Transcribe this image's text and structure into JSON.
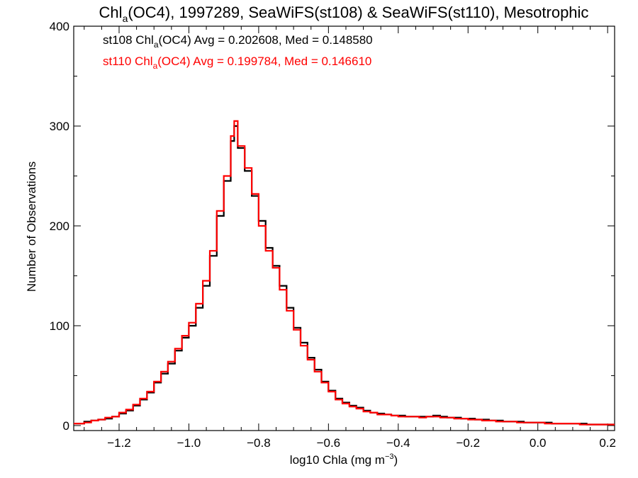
{
  "chart_data": {
    "type": "line",
    "title": {
      "prefix": "Chl",
      "sub": "a",
      "suffix": "(OC4), 1997289, SeaWiFS(st108) & SeaWiFS(st110), Mesotrophic"
    },
    "xlabel": {
      "prefix": "log10 Chla (mg m",
      "sup": "−3",
      "suffix": ")"
    },
    "ylabel": "Number of Observations",
    "xlim": [
      -1.33,
      0.22
    ],
    "ylim": [
      -5,
      400
    ],
    "x_ticks": [
      {
        "value": -1.2,
        "label": "−1.2"
      },
      {
        "value": -1.0,
        "label": "−1.0"
      },
      {
        "value": -0.8,
        "label": "−0.8"
      },
      {
        "value": -0.6,
        "label": "−0.6"
      },
      {
        "value": -0.4,
        "label": "−0.4"
      },
      {
        "value": -0.2,
        "label": "−0.2"
      },
      {
        "value": 0.0,
        "label": "0.0"
      },
      {
        "value": 0.2,
        "label": "0.2"
      }
    ],
    "y_ticks": [
      {
        "value": 0,
        "label": "0"
      },
      {
        "value": 100,
        "label": "100"
      },
      {
        "value": 200,
        "label": "200"
      },
      {
        "value": 300,
        "label": "300"
      },
      {
        "value": 400,
        "label": "400"
      }
    ],
    "legend": [
      {
        "series": "st108",
        "color": "#000000",
        "prefix": "st108 Chl",
        "sub": "a",
        "suffix": "(OC4) Avg = 0.202608, Med = 0.148580"
      },
      {
        "series": "st110",
        "color": "#ff0000",
        "prefix": "st110 Chl",
        "sub": "a",
        "suffix": "(OC4) Avg = 0.199784, Med = 0.146610"
      }
    ],
    "legend_position": "top-left",
    "grid": false,
    "draw_style": "histogram-step",
    "series": [
      {
        "name": "st108",
        "color": "#000000",
        "x": [
          -1.33,
          -1.3,
          -1.28,
          -1.26,
          -1.24,
          -1.22,
          -1.2,
          -1.18,
          -1.16,
          -1.14,
          -1.12,
          -1.1,
          -1.08,
          -1.06,
          -1.04,
          -1.02,
          -1.0,
          -0.98,
          -0.96,
          -0.94,
          -0.92,
          -0.9,
          -0.88,
          -0.87,
          -0.86,
          -0.84,
          -0.82,
          -0.8,
          -0.78,
          -0.76,
          -0.74,
          -0.72,
          -0.7,
          -0.68,
          -0.66,
          -0.64,
          -0.62,
          -0.6,
          -0.58,
          -0.56,
          -0.54,
          -0.52,
          -0.5,
          -0.48,
          -0.46,
          -0.44,
          -0.42,
          -0.4,
          -0.38,
          -0.36,
          -0.34,
          -0.32,
          -0.3,
          -0.28,
          -0.26,
          -0.24,
          -0.22,
          -0.2,
          -0.18,
          -0.16,
          -0.14,
          -0.12,
          -0.1,
          -0.08,
          -0.06,
          -0.04,
          -0.02,
          0.0,
          0.02,
          0.04,
          0.06,
          0.08,
          0.1,
          0.12,
          0.14,
          0.16,
          0.18,
          0.2,
          0.22
        ],
        "y": [
          2,
          4,
          5,
          6,
          7,
          9,
          12,
          15,
          20,
          26,
          33,
          43,
          52,
          62,
          75,
          88,
          100,
          118,
          140,
          170,
          210,
          245,
          285,
          300,
          278,
          255,
          230,
          205,
          178,
          160,
          140,
          118,
          98,
          83,
          68,
          56,
          44,
          35,
          27,
          23,
          20,
          18,
          15,
          13,
          12,
          11,
          10,
          10,
          9,
          9,
          9,
          9,
          10,
          9,
          8,
          8,
          7,
          7,
          6,
          6,
          5,
          5,
          4,
          4,
          4,
          3,
          3,
          3,
          3,
          2,
          2,
          2,
          2,
          2,
          1,
          1,
          1,
          1,
          1
        ]
      },
      {
        "name": "st110",
        "color": "#ff0000",
        "x": [
          -1.33,
          -1.3,
          -1.28,
          -1.26,
          -1.24,
          -1.22,
          -1.2,
          -1.18,
          -1.16,
          -1.14,
          -1.12,
          -1.1,
          -1.08,
          -1.06,
          -1.04,
          -1.02,
          -1.0,
          -0.98,
          -0.96,
          -0.94,
          -0.92,
          -0.9,
          -0.88,
          -0.87,
          -0.86,
          -0.84,
          -0.82,
          -0.8,
          -0.78,
          -0.76,
          -0.74,
          -0.72,
          -0.7,
          -0.68,
          -0.66,
          -0.64,
          -0.62,
          -0.6,
          -0.58,
          -0.56,
          -0.54,
          -0.52,
          -0.5,
          -0.48,
          -0.46,
          -0.44,
          -0.42,
          -0.4,
          -0.38,
          -0.36,
          -0.34,
          -0.32,
          -0.3,
          -0.28,
          -0.26,
          -0.24,
          -0.22,
          -0.2,
          -0.18,
          -0.16,
          -0.14,
          -0.12,
          -0.1,
          -0.08,
          -0.06,
          -0.04,
          -0.02,
          0.0,
          0.02,
          0.04,
          0.06,
          0.08,
          0.1,
          0.12,
          0.14,
          0.16,
          0.18,
          0.2,
          0.22
        ],
        "y": [
          2,
          3,
          5,
          6,
          8,
          9,
          13,
          16,
          21,
          27,
          34,
          44,
          54,
          64,
          77,
          90,
          103,
          122,
          145,
          175,
          215,
          250,
          290,
          305,
          280,
          258,
          232,
          200,
          175,
          158,
          136,
          115,
          96,
          80,
          66,
          54,
          43,
          34,
          26,
          22,
          19,
          17,
          14,
          13,
          11,
          11,
          10,
          9,
          9,
          9,
          8,
          9,
          9,
          8,
          8,
          7,
          7,
          6,
          6,
          5,
          5,
          4,
          4,
          4,
          3,
          3,
          3,
          3,
          2,
          2,
          2,
          2,
          2,
          1,
          1,
          1,
          1,
          1,
          1
        ]
      }
    ]
  }
}
